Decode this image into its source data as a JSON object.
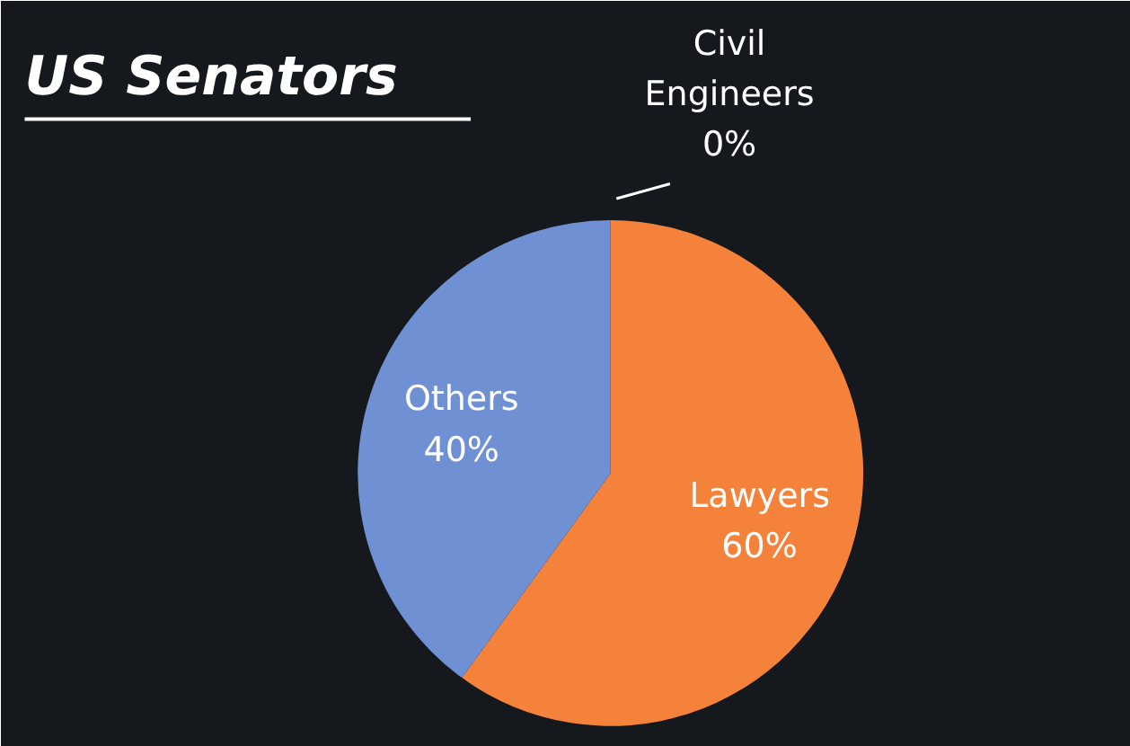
{
  "chart_data": {
    "type": "pie",
    "title": "US Senators",
    "categories": [
      "Civil Engineers",
      "Lawyers",
      "Others"
    ],
    "values": [
      0,
      60,
      40
    ],
    "colors": [
      "#a0a0a0",
      "#f5823a",
      "#7090d4"
    ],
    "value_labels": [
      "0%",
      "60%",
      "40%"
    ],
    "legend": false
  }
}
